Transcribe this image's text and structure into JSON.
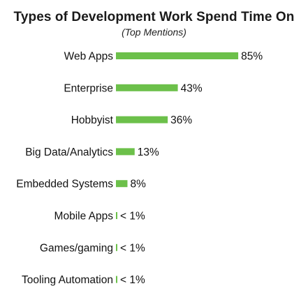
{
  "chart_data": {
    "type": "bar",
    "orientation": "horizontal",
    "title": "Types of Development Work Spend Time On",
    "subtitle": "(Top Mentions)",
    "categories": [
      "Web Apps",
      "Enterprise",
      "Hobbyist",
      "Big Data/Analytics",
      "Embedded Systems",
      "Mobile Apps",
      "Games/gaming",
      "Tooling Automation"
    ],
    "values": [
      85,
      43,
      36,
      13,
      8,
      0.5,
      0.5,
      0.5
    ],
    "value_labels": [
      "85%",
      "43%",
      "36%",
      "13%",
      "8%",
      "< 1%",
      "< 1%",
      "< 1%"
    ],
    "xlim": [
      0,
      100
    ],
    "grid": false,
    "bar_color": "#6cc04a"
  }
}
